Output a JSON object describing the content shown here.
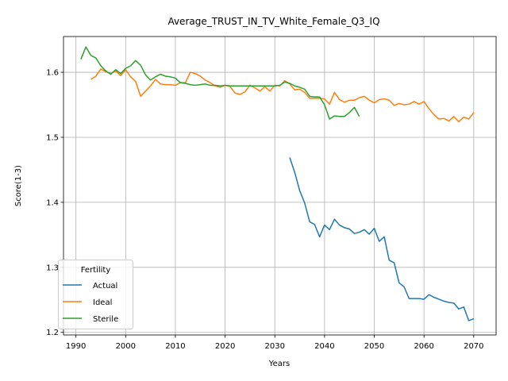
{
  "chart_data": {
    "type": "line",
    "title": "Average_TRUST_IN_TV_White_Female_Q3_IQ",
    "xlabel": "Years",
    "ylabel": "Score(1-3)",
    "xlim": [
      1987.5,
      2074.5
    ],
    "ylim": [
      1.196,
      1.655
    ],
    "xticks": [
      1990,
      2000,
      2010,
      2020,
      2030,
      2040,
      2050,
      2060,
      2070
    ],
    "yticks": [
      1.2,
      1.3,
      1.4,
      1.5,
      1.6
    ],
    "grid": true,
    "legend": {
      "title": "Fertility",
      "placement": "lower-left"
    },
    "series": [
      {
        "name": "Actual",
        "color": "#1f77b4",
        "x": [
          2033,
          2034,
          2035,
          2036,
          2037,
          2038,
          2039,
          2040,
          2041,
          2042,
          2043,
          2044,
          2045,
          2046,
          2047,
          2048,
          2049,
          2050,
          2051,
          2052,
          2053,
          2054,
          2055,
          2056,
          2057,
          2058,
          2059,
          2060,
          2061,
          2062,
          2063,
          2064,
          2065,
          2066,
          2067,
          2068,
          2069,
          2070
        ],
        "y": [
          1.469,
          1.446,
          1.418,
          1.399,
          1.37,
          1.366,
          1.347,
          1.365,
          1.358,
          1.374,
          1.365,
          1.361,
          1.359,
          1.352,
          1.354,
          1.358,
          1.351,
          1.36,
          1.34,
          1.347,
          1.311,
          1.307,
          1.276,
          1.27,
          1.252,
          1.252,
          1.252,
          1.251,
          1.258,
          1.254,
          1.251,
          1.248,
          1.246,
          1.245,
          1.236,
          1.239,
          1.218,
          1.221
        ]
      },
      {
        "name": "Ideal",
        "color": "#ff7f0e",
        "x": [
          1993,
          1994,
          1995,
          1996,
          1997,
          1998,
          1999,
          2000,
          2001,
          2002,
          2003,
          2004,
          2005,
          2006,
          2007,
          2008,
          2009,
          2010,
          2011,
          2012,
          2013,
          2014,
          2015,
          2016,
          2017,
          2018,
          2019,
          2020,
          2021,
          2022,
          2023,
          2024,
          2025,
          2026,
          2027,
          2028,
          2029,
          2030,
          2031,
          2032,
          2033,
          2034,
          2035,
          2036,
          2037,
          2038,
          2039,
          2040,
          2041,
          2042,
          2043,
          2044,
          2045,
          2046,
          2047,
          2048,
          2049,
          2050,
          2051,
          2052,
          2053,
          2054,
          2055,
          2056,
          2057,
          2058,
          2059,
          2060,
          2061,
          2062,
          2063,
          2064,
          2065,
          2066,
          2067,
          2068,
          2069,
          2070
        ],
        "y": [
          1.589,
          1.594,
          1.605,
          1.601,
          1.598,
          1.602,
          1.595,
          1.604,
          1.593,
          1.586,
          1.563,
          1.571,
          1.579,
          1.589,
          1.582,
          1.581,
          1.581,
          1.58,
          1.584,
          1.584,
          1.6,
          1.598,
          1.594,
          1.588,
          1.584,
          1.579,
          1.577,
          1.58,
          1.578,
          1.568,
          1.566,
          1.57,
          1.58,
          1.576,
          1.571,
          1.578,
          1.571,
          1.58,
          1.579,
          1.587,
          1.582,
          1.573,
          1.574,
          1.569,
          1.56,
          1.56,
          1.56,
          1.559,
          1.551,
          1.569,
          1.558,
          1.554,
          1.557,
          1.557,
          1.561,
          1.563,
          1.557,
          1.553,
          1.558,
          1.559,
          1.557,
          1.549,
          1.552,
          1.55,
          1.551,
          1.555,
          1.551,
          1.555,
          1.544,
          1.535,
          1.528,
          1.529,
          1.525,
          1.532,
          1.524,
          1.531,
          1.528,
          1.538
        ]
      },
      {
        "name": "Sterile",
        "color": "#2ca02c",
        "x": [
          1991,
          1992,
          1993,
          1994,
          1995,
          1996,
          1997,
          1998,
          1999,
          2000,
          2001,
          2002,
          2003,
          2004,
          2005,
          2006,
          2007,
          2008,
          2009,
          2010,
          2011,
          2012,
          2013,
          2014,
          2015,
          2016,
          2017,
          2018,
          2019,
          2020,
          2021,
          2022,
          2023,
          2024,
          2025,
          2026,
          2027,
          2028,
          2029,
          2030,
          2031,
          2032,
          2033,
          2034,
          2035,
          2036,
          2037,
          2038,
          2039,
          2040,
          2041,
          2042,
          2043,
          2044,
          2045,
          2046,
          2047
        ],
        "y": [
          1.62,
          1.639,
          1.626,
          1.622,
          1.61,
          1.602,
          1.597,
          1.604,
          1.598,
          1.606,
          1.61,
          1.618,
          1.611,
          1.596,
          1.588,
          1.593,
          1.597,
          1.594,
          1.593,
          1.591,
          1.584,
          1.583,
          1.581,
          1.58,
          1.581,
          1.582,
          1.58,
          1.58,
          1.579,
          1.58,
          1.579,
          1.579,
          1.579,
          1.579,
          1.579,
          1.579,
          1.579,
          1.579,
          1.579,
          1.579,
          1.58,
          1.585,
          1.583,
          1.579,
          1.577,
          1.574,
          1.563,
          1.562,
          1.562,
          1.55,
          1.528,
          1.533,
          1.532,
          1.532,
          1.538,
          1.546,
          1.532
        ]
      }
    ]
  }
}
